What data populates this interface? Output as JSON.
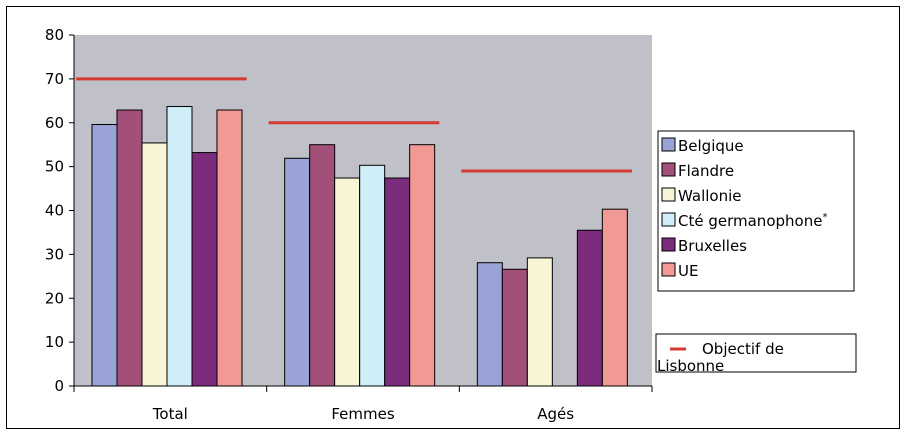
{
  "chart_data": {
    "type": "bar",
    "title": "",
    "xlabel": "",
    "ylabel": "",
    "ylim": [
      0,
      80
    ],
    "yticks": [
      0,
      10,
      20,
      30,
      40,
      50,
      60,
      70,
      80
    ],
    "categories": [
      "Total",
      "Femmes",
      "Agés"
    ],
    "series": [
      {
        "name": "Belgique",
        "values": [
          59.6,
          51.9,
          28.1
        ],
        "color": "#99a3d6"
      },
      {
        "name": "Flandre",
        "values": [
          62.9,
          55.0,
          26.6
        ],
        "color": "#a24f7a"
      },
      {
        "name": "Wallonie",
        "values": [
          55.4,
          47.4,
          29.2
        ],
        "color": "#f7f5d6"
      },
      {
        "name": "Cté germanophone",
        "name_suffix": "*",
        "values": [
          63.7,
          50.3,
          null
        ],
        "color": "#cfeef8"
      },
      {
        "name": "Bruxelles",
        "values": [
          53.2,
          47.4,
          35.5
        ],
        "color": "#7c2c7c"
      },
      {
        "name": "UE",
        "values": [
          62.9,
          55.0,
          40.3
        ],
        "color": "#f19994"
      }
    ],
    "target_line": {
      "name": "Objectif de Lisbonne",
      "color": "#d43a32",
      "values": [
        70,
        60,
        49
      ]
    },
    "grid": false,
    "plot_background": "#c0c0c8",
    "legend_position": "right"
  }
}
